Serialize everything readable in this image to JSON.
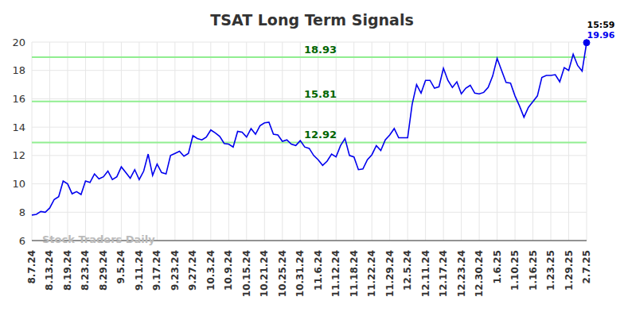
{
  "chart_data": {
    "type": "line",
    "title": "TSAT Long Term Signals",
    "watermark": "Stock Traders Daily",
    "categories": [
      "8.7.24",
      null,
      null,
      null,
      "8.13.24",
      null,
      null,
      null,
      "8.19.24",
      null,
      null,
      null,
      "8.23.24",
      null,
      null,
      null,
      "8.29.24",
      null,
      null,
      null,
      "9.5.24",
      null,
      null,
      null,
      "9.11.24",
      null,
      null,
      null,
      "9.17.24",
      null,
      null,
      null,
      "9.23.24",
      null,
      null,
      null,
      "9.27.24",
      null,
      null,
      null,
      "10.3.24",
      null,
      null,
      null,
      "10.9.24",
      null,
      null,
      null,
      "10.15.24",
      null,
      null,
      null,
      "10.21.24",
      null,
      null,
      null,
      "10.25.24",
      null,
      null,
      null,
      "10.31.24",
      null,
      null,
      null,
      "11.6.24",
      null,
      null,
      null,
      "11.12.24",
      null,
      null,
      null,
      "11.18.24",
      null,
      null,
      null,
      "11.22.24",
      null,
      null,
      null,
      "11.29.24",
      null,
      null,
      null,
      "12.5.24",
      null,
      null,
      null,
      "12.11.24",
      null,
      null,
      null,
      "12.17.24",
      null,
      null,
      null,
      "12.23.24",
      null,
      null,
      null,
      "12.30.24",
      null,
      null,
      null,
      "1.6.25",
      null,
      null,
      null,
      "1.10.25",
      null,
      null,
      null,
      "1.16.25",
      null,
      null,
      null,
      "1.23.25",
      null,
      null,
      null,
      "1.29.25",
      null,
      null,
      null,
      "2.7.25"
    ],
    "values": [
      7.8,
      7.85,
      8.05,
      8.0,
      8.3,
      8.9,
      9.1,
      10.2,
      10.0,
      9.3,
      9.45,
      9.25,
      10.2,
      10.1,
      10.7,
      10.35,
      10.5,
      10.9,
      10.3,
      10.5,
      11.2,
      10.8,
      10.4,
      11.0,
      10.3,
      10.9,
      12.1,
      10.6,
      11.4,
      10.8,
      10.7,
      12.0,
      12.15,
      12.3,
      11.95,
      12.15,
      13.4,
      13.2,
      13.1,
      13.3,
      13.8,
      13.6,
      13.35,
      12.85,
      12.8,
      12.6,
      13.7,
      13.65,
      13.3,
      13.9,
      13.5,
      14.1,
      14.3,
      14.35,
      13.5,
      13.45,
      13.0,
      13.1,
      12.8,
      12.7,
      13.05,
      12.6,
      12.5,
      12.0,
      11.7,
      11.3,
      11.6,
      12.1,
      11.9,
      12.7,
      13.2,
      12.0,
      11.9,
      11.0,
      11.05,
      11.7,
      12.05,
      12.7,
      12.35,
      13.1,
      13.45,
      13.9,
      13.25,
      13.25,
      13.25,
      15.6,
      17.0,
      16.4,
      17.3,
      17.3,
      16.75,
      16.85,
      18.15,
      17.3,
      16.8,
      17.2,
      16.35,
      16.75,
      16.95,
      16.4,
      16.35,
      16.45,
      16.8,
      17.6,
      18.85,
      18.0,
      17.15,
      17.1,
      16.2,
      15.5,
      14.7,
      15.4,
      15.8,
      16.2,
      17.5,
      17.65,
      17.65,
      17.7,
      17.2,
      18.2,
      18.0,
      19.15,
      18.35,
      17.95,
      19.96
    ],
    "color": "#0000ee",
    "signal_levels": [
      18.93,
      15.81,
      12.92
    ],
    "signal_color": "#90ee90",
    "last_label": {
      "time": "15:59",
      "value": 19.96
    },
    "ylim": [
      6,
      20
    ],
    "yticks": [
      6,
      8,
      10,
      12,
      14,
      16,
      18,
      20
    ],
    "grid": true
  }
}
